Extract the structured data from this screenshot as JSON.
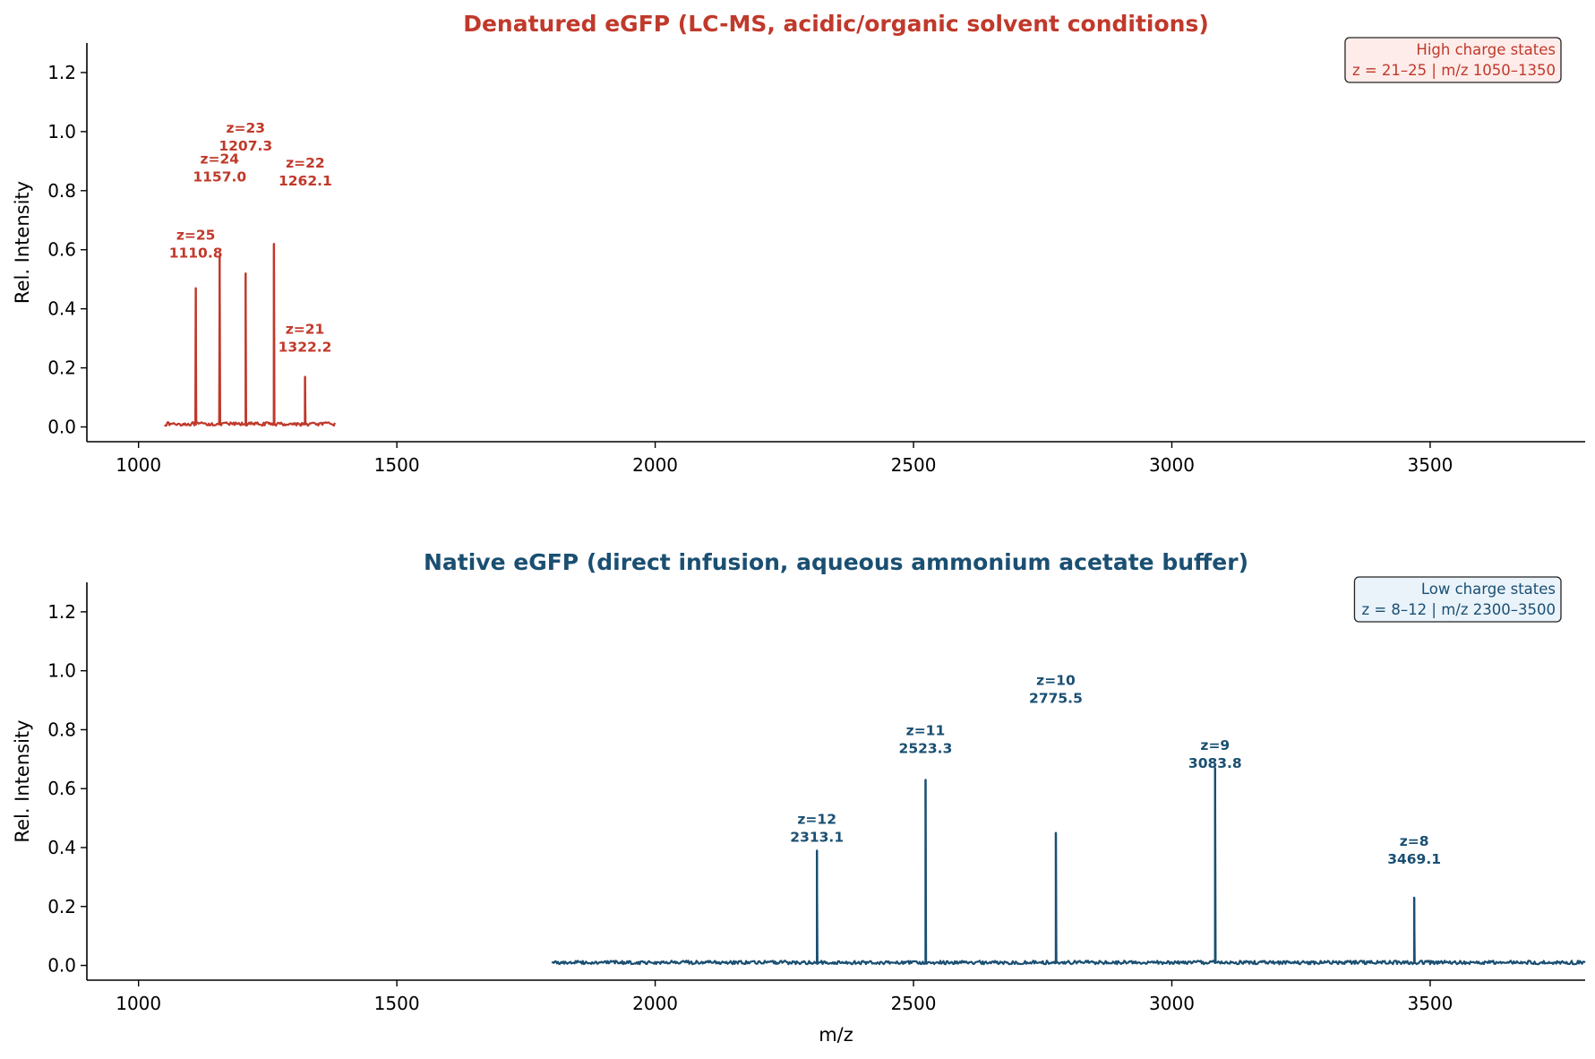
{
  "chart_data": [
    {
      "type": "line",
      "title": "Denatured eGFP  (LC-MS, acidic/organic solvent conditions)",
      "xlabel": "",
      "ylabel": "Rel. Intensity",
      "xlim": [
        900,
        3800
      ],
      "ylim": [
        -0.05,
        1.3
      ],
      "xticks": [
        "1000",
        "1500",
        "2000",
        "2500",
        "3000",
        "3500"
      ],
      "yticks": [
        "0.0",
        "0.2",
        "0.4",
        "0.6",
        "0.8",
        "1.0",
        "1.2"
      ],
      "grid": false,
      "color": "#c0392b",
      "box_bg": "#fdecea",
      "baseline_range": [
        1050,
        1380
      ],
      "peaks": [
        {
          "z": 25,
          "mz": 1110.8,
          "intensity": 0.47,
          "label_line1": "z=25",
          "label_line2": "1110.8"
        },
        {
          "z": 24,
          "mz": 1157.0,
          "intensity": 0.58,
          "label_line1": "z=24",
          "label_line2": "1157.0"
        },
        {
          "z": 23,
          "mz": 1207.3,
          "intensity": 0.52,
          "label_line1": "z=23",
          "label_line2": "1207.3"
        },
        {
          "z": 22,
          "mz": 1262.1,
          "intensity": 0.62,
          "label_line1": "z=22",
          "label_line2": "1262.1"
        },
        {
          "z": 21,
          "mz": 1322.2,
          "intensity": 0.17,
          "label_line1": "z=21",
          "label_line2": "1322.2"
        }
      ],
      "info_box": {
        "line1": "High charge states",
        "line2": "z = 21–25 | m/z 1050–1350"
      }
    },
    {
      "type": "line",
      "title": "Native eGFP  (direct infusion, aqueous ammonium acetate buffer)",
      "xlabel": "m/z",
      "ylabel": "Rel. Intensity",
      "xlim": [
        900,
        3800
      ],
      "ylim": [
        -0.05,
        1.3
      ],
      "xticks": [
        "1000",
        "1500",
        "2000",
        "2500",
        "3000",
        "3500"
      ],
      "yticks": [
        "0.0",
        "0.2",
        "0.4",
        "0.6",
        "0.8",
        "1.0",
        "1.2"
      ],
      "grid": false,
      "color": "#1a4f72",
      "box_bg": "#eaf3fa",
      "baseline_range": [
        1800,
        3800
      ],
      "peaks": [
        {
          "z": 12,
          "mz": 2313.1,
          "intensity": 0.39,
          "label_line1": "z=12",
          "label_line2": "2313.1"
        },
        {
          "z": 11,
          "mz": 2523.3,
          "intensity": 0.63,
          "label_line1": "z=11",
          "label_line2": "2523.3"
        },
        {
          "z": 10,
          "mz": 2775.5,
          "intensity": 0.45,
          "label_line1": "z=10",
          "label_line2": "2775.5"
        },
        {
          "z": 9,
          "mz": 3083.8,
          "intensity": 0.67,
          "label_line1": "z=9",
          "label_line2": "3083.8"
        },
        {
          "z": 8,
          "mz": 3469.1,
          "intensity": 0.23,
          "label_line1": "z=8",
          "label_line2": "3469.1"
        }
      ],
      "info_box": {
        "line1": "Low charge states",
        "line2": "z = 8–12 | m/z 2300–3500"
      }
    }
  ]
}
